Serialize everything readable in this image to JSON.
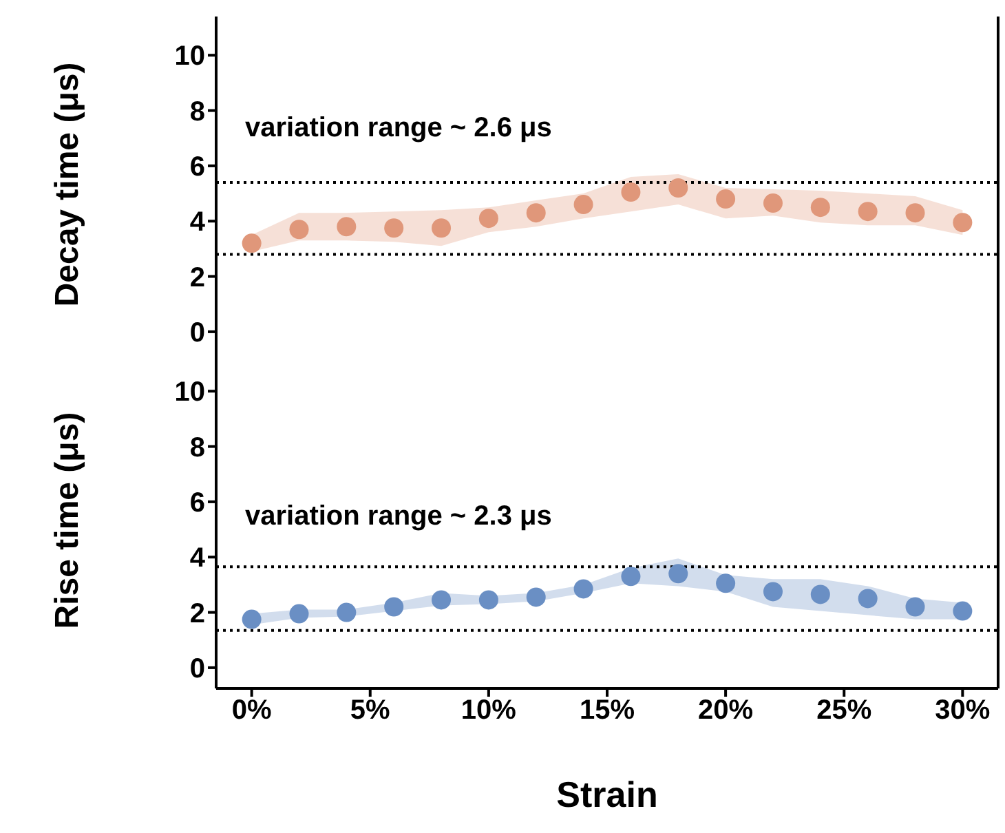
{
  "chart_data": [
    {
      "type": "scatter",
      "ylabel": "Decay time (μs)",
      "x": [
        0,
        2,
        4,
        6,
        8,
        10,
        12,
        14,
        16,
        18,
        20,
        22,
        24,
        26,
        28,
        30
      ],
      "xlim": [
        -1.5,
        31.5
      ],
      "xticks": [
        {
          "value": 0,
          "label": null
        },
        {
          "value": 5,
          "label": null
        },
        {
          "value": 10,
          "label": null
        },
        {
          "value": 15,
          "label": null
        },
        {
          "value": 20,
          "label": null
        },
        {
          "value": 25,
          "label": null
        },
        {
          "value": 30,
          "label": null
        }
      ],
      "ylim": [
        -0.75,
        11.4
      ],
      "yticks": [
        0,
        2,
        4,
        6,
        8,
        10
      ],
      "tick_labels": "y",
      "marker": "circle",
      "series": [
        {
          "color": "#e0977a",
          "values": [
            3.2,
            3.7,
            3.8,
            3.75,
            3.75,
            4.1,
            4.3,
            4.6,
            5.05,
            5.2,
            4.8,
            4.65,
            4.5,
            4.35,
            4.3,
            3.95
          ],
          "upper": [
            3.5,
            4.3,
            4.3,
            4.35,
            4.4,
            4.5,
            4.75,
            5.0,
            5.6,
            5.7,
            5.2,
            5.15,
            5.1,
            5.0,
            4.9,
            4.4
          ],
          "lower": [
            2.9,
            3.3,
            3.3,
            3.25,
            3.1,
            3.6,
            3.8,
            4.1,
            4.35,
            4.6,
            4.1,
            4.2,
            3.95,
            3.85,
            3.85,
            3.5
          ]
        }
      ],
      "ref_lines": [
        {
          "axis": "y",
          "value": 5.4,
          "line_style": "dotted",
          "color": "#000000"
        },
        {
          "axis": "y",
          "value": 2.8,
          "line_style": "dotted",
          "color": "#000000"
        }
      ],
      "annotations": [
        "variation range ~ 2.6 μs"
      ]
    },
    {
      "type": "scatter",
      "ylabel": "Rise time (μs)",
      "xlabel": "Strain",
      "x": [
        0,
        2,
        4,
        6,
        8,
        10,
        12,
        14,
        16,
        18,
        20,
        22,
        24,
        26,
        28,
        30
      ],
      "xlim": [
        -1.5,
        31.5
      ],
      "xticks": [
        {
          "value": 0,
          "label": "0%"
        },
        {
          "value": 5,
          "label": "5%"
        },
        {
          "value": 10,
          "label": "10%"
        },
        {
          "value": 15,
          "label": "15%"
        },
        {
          "value": 20,
          "label": "20%"
        },
        {
          "value": 25,
          "label": "25%"
        },
        {
          "value": 30,
          "label": "30%"
        }
      ],
      "ylim": [
        -0.75,
        11.4
      ],
      "yticks": [
        0,
        2,
        4,
        6,
        8,
        10
      ],
      "marker": "circle",
      "series": [
        {
          "color": "#6a8fc4",
          "values": [
            1.75,
            1.95,
            2.0,
            2.2,
            2.45,
            2.45,
            2.55,
            2.85,
            3.3,
            3.4,
            3.05,
            2.75,
            2.65,
            2.5,
            2.2,
            2.05
          ],
          "upper": [
            1.95,
            2.1,
            2.1,
            2.35,
            2.7,
            2.6,
            2.7,
            3.0,
            3.6,
            3.95,
            3.35,
            3.2,
            3.2,
            2.95,
            2.5,
            2.35
          ],
          "lower": [
            1.55,
            1.8,
            1.85,
            2.05,
            2.25,
            2.3,
            2.4,
            2.7,
            3.05,
            2.95,
            2.75,
            2.2,
            2.05,
            1.9,
            1.75,
            1.75
          ]
        }
      ],
      "ref_lines": [
        {
          "axis": "y",
          "value": 3.65,
          "line_style": "dotted",
          "color": "#000000"
        },
        {
          "axis": "y",
          "value": 1.35,
          "line_style": "dotted",
          "color": "#000000"
        }
      ],
      "annotations": [
        "variation range ~ 2.3 μs"
      ]
    }
  ]
}
